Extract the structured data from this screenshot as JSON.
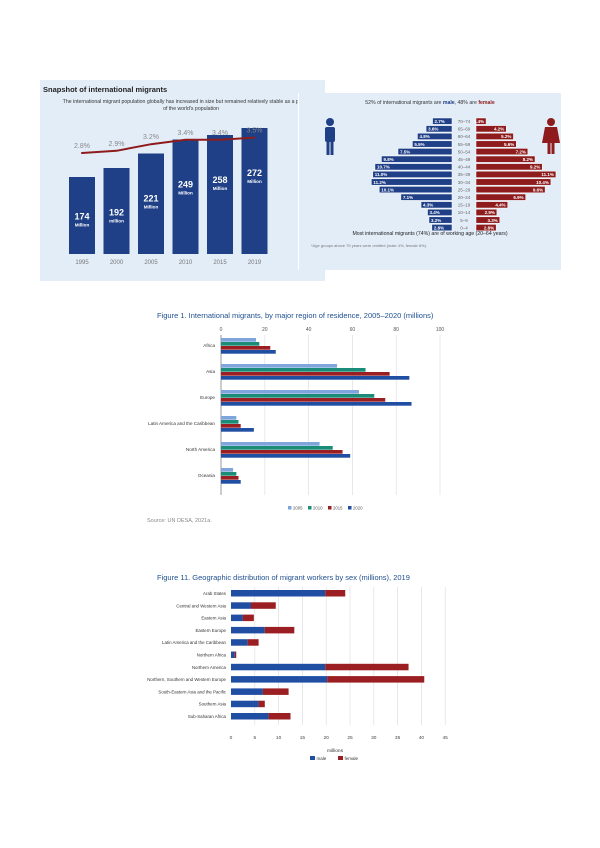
{
  "chart_data": [
    {
      "type": "bar",
      "title": "Snapshot of international migrants",
      "subtitle": "The international migrant population globally has increased in size but remained relatively stable as a proportion of the world's population",
      "categories": [
        "1995",
        "2000",
        "2005",
        "2010",
        "2015",
        "2019"
      ],
      "values": [
        174,
        192,
        221,
        249,
        258,
        272
      ],
      "value_labels": [
        {
          "num": "174",
          "unit": "Million"
        },
        {
          "num": "192",
          "unit": "million"
        },
        {
          "num": "221",
          "unit": "Million"
        },
        {
          "num": "249",
          "unit": "Million"
        },
        {
          "num": "258",
          "unit": "Million"
        },
        {
          "num": "272",
          "unit": "Million"
        }
      ],
      "line_series": {
        "name": "Share of world population (%)",
        "values": [
          2.8,
          2.9,
          3.2,
          3.4,
          3.4,
          3.5
        ],
        "labels": [
          "2.8%",
          "2.9%",
          "3.2%",
          "3.4%",
          "3.4%",
          "3.5%"
        ]
      },
      "colors": {
        "bar": "#1f3f86",
        "line": "#8e1c1c",
        "panel": "#e3edf8"
      },
      "ylim": [
        0,
        300
      ]
    },
    {
      "type": "bar",
      "subtype": "population-pyramid",
      "title_parts": {
        "male_pct": "52% of international migrants are ",
        "male": "male",
        "sep": ", 48% are ",
        "female": "female"
      },
      "categories": [
        "70–74",
        "65–69",
        "60–64",
        "55–59",
        "50–54",
        "45–49",
        "40–44",
        "35–39",
        "30–34",
        "25–29",
        "20–24",
        "15–19",
        "10–14",
        "5–9",
        "0–4"
      ],
      "series": [
        {
          "name": "Male",
          "values": [
            2.7,
            3.6,
            4.8,
            5.5,
            7.5,
            9.8,
            10.7,
            11.0,
            11.2,
            10.1,
            7.1,
            4.3,
            3.4,
            3.2,
            2.8
          ],
          "labels": [
            "2.7%",
            "3.6%",
            "4.8%",
            "5.5%",
            "7.5%",
            "9.8%",
            "10.7%",
            "11.0%",
            "11.2%",
            "10.1%",
            "7.1%",
            "4.3%",
            "3.4%",
            "3.2%",
            "2.8%"
          ]
        },
        {
          "name": "Female",
          "values": [
            1.4,
            4.2,
            5.2,
            5.6,
            7.2,
            8.2,
            9.2,
            11.1,
            10.4,
            9.6,
            6.9,
            4.4,
            2.9,
            3.3,
            2.8
          ],
          "labels": [
            "1.4%",
            "4.2%",
            "5.2%",
            "5.6%",
            "7.2%",
            "8.2%",
            "9.2%",
            "11.1%",
            "10.4%",
            "9.6%",
            "6.9%",
            "4.4%",
            "2.9%",
            "3.3%",
            "2.8%"
          ]
        }
      ],
      "footer": "Most international migrants (74%) are of working age (20–64 years)",
      "note": "*Age groups above 75 years were omitted (male 4%, female 6%).",
      "colors": {
        "male": "#1f3f86",
        "female": "#8e1c1c"
      }
    },
    {
      "type": "bar",
      "orientation": "horizontal",
      "title": "Figure 1. International migrants, by major region of residence, 2005–2020 (millions)",
      "categories": [
        "Africa",
        "Asia",
        "Europe",
        "Latin America and the Caribbean",
        "North America",
        "Oceania"
      ],
      "series": [
        {
          "name": "2005",
          "color": "#7ea6dc",
          "values": [
            16,
            53,
            63,
            7,
            45,
            5.5
          ]
        },
        {
          "name": "2010",
          "color": "#1a8c78",
          "values": [
            17.5,
            66,
            70,
            8,
            51,
            7
          ]
        },
        {
          "name": "2015",
          "color": "#9b1f22",
          "values": [
            22.5,
            77,
            75,
            9,
            55.5,
            8
          ]
        },
        {
          "name": "2020",
          "color": "#1f4ea3",
          "values": [
            25,
            86,
            87,
            15,
            59,
            9
          ]
        }
      ],
      "xticks": [
        "0",
        "20",
        "40",
        "60",
        "80",
        "100"
      ],
      "xlim": [
        0,
        100
      ],
      "grid": true,
      "legend_position": "bottom",
      "source": "Source: UN DESA, 2021a."
    },
    {
      "type": "bar",
      "orientation": "horizontal",
      "stacked": true,
      "title": "Figure 11. Geographic distribution of migrant workers by sex (millions), 2019",
      "categories": [
        "Arab States",
        "Central and Western Asia",
        "Eastern Asia",
        "Eastern Europe",
        "Latin America and the Caribbean",
        "Northern Africa",
        "Northern America",
        "Northern, Southern and Western Europe",
        "South-Eastern Asia and the Pacific",
        "Southern Asia",
        "Sub-Saharan Africa"
      ],
      "series": [
        {
          "name": "male",
          "color": "#1f4ea3",
          "values": [
            19.8,
            4.2,
            2.5,
            7.1,
            3.5,
            0.8,
            19.8,
            20.2,
            6.7,
            5.8,
            7.9
          ]
        },
        {
          "name": "female",
          "color": "#9b1f22",
          "values": [
            4.2,
            5.2,
            2.3,
            6.2,
            2.3,
            0.3,
            17.5,
            20.4,
            5.4,
            1.3,
            4.6
          ]
        }
      ],
      "xticks": [
        "0",
        "5",
        "10",
        "15",
        "20",
        "25",
        "30",
        "35",
        "40",
        "45"
      ],
      "xlim": [
        0,
        45
      ],
      "xlabel": "millions",
      "grid": true,
      "legend_position": "bottom"
    }
  ]
}
